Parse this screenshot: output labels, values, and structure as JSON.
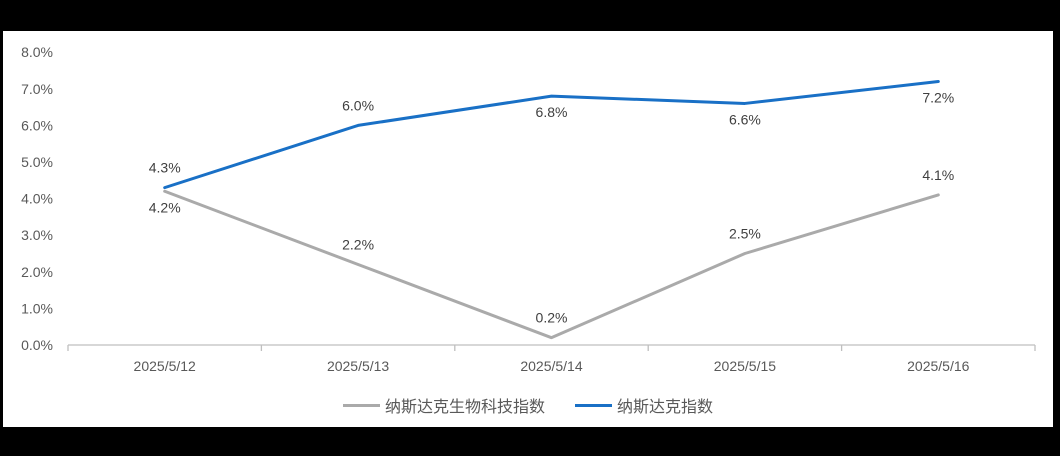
{
  "chart_data": {
    "type": "line",
    "title": "",
    "xlabel": "",
    "ylabel": "",
    "categories": [
      "2025/5/12",
      "2025/5/13",
      "2025/5/14",
      "2025/5/15",
      "2025/5/16"
    ],
    "series": [
      {
        "name": "纳斯达克生物科技指数",
        "color": "#aaaaaa",
        "values": [
          4.2,
          2.2,
          0.2,
          2.5,
          4.1
        ],
        "data_labels": [
          "4.2%",
          "2.2%",
          "0.2%",
          "2.5%",
          "4.1%"
        ],
        "label_placement": [
          "below",
          "above",
          "above",
          "above",
          "above"
        ]
      },
      {
        "name": "纳斯达克指数",
        "color": "#1970c6",
        "values": [
          4.3,
          6.0,
          6.8,
          6.6,
          7.2
        ],
        "data_labels": [
          "4.3%",
          "6.0%",
          "6.8%",
          "6.6%",
          "7.2%"
        ],
        "label_placement": [
          "above",
          "above",
          "below",
          "below",
          "below"
        ]
      }
    ],
    "ylim": [
      0,
      8
    ],
    "ytick_step": 1,
    "ytick_labels": [
      "0.0%",
      "1.0%",
      "2.0%",
      "3.0%",
      "4.0%",
      "5.0%",
      "6.0%",
      "7.0%",
      "8.0%"
    ],
    "grid": false,
    "legend_position": "bottom"
  },
  "colors": {
    "frame_background": "#000000",
    "canvas_background": "#ffffff",
    "axis_line": "#bfbfbf",
    "tick_label": "#595959",
    "data_label": "#3f3f3f",
    "legend_text": "#595959"
  }
}
